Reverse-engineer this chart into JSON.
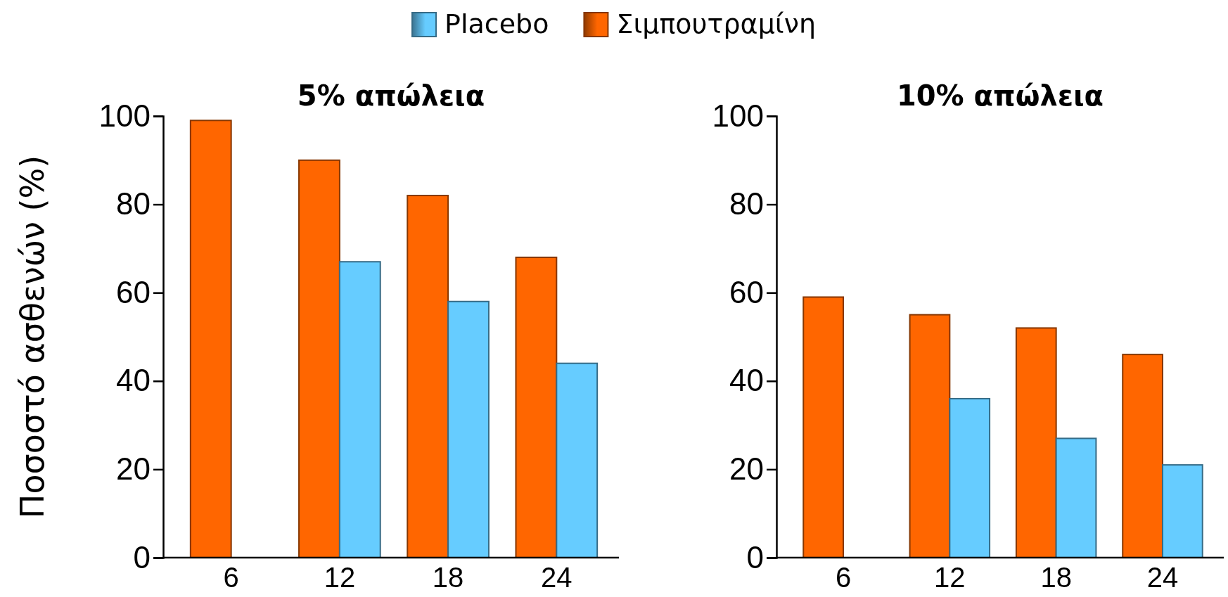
{
  "chart_data": [
    {
      "type": "bar",
      "title": "5% απώλεια",
      "ylabel": "Ποσοστό ασθενών (%)",
      "categories": [
        "6",
        "12",
        "18",
        "24"
      ],
      "legend": "top",
      "ylim": [
        0,
        100
      ],
      "yticks": [
        0,
        20,
        40,
        60,
        80,
        100
      ],
      "series": [
        {
          "name": "Σιμπουτραμίνη",
          "color": "#ff6600",
          "values": [
            99,
            90,
            82,
            68
          ]
        },
        {
          "name": "Placebo",
          "color": "#66ccff",
          "values": [
            null,
            67,
            58,
            44
          ]
        }
      ]
    },
    {
      "type": "bar",
      "title": "10% απώλεια",
      "categories": [
        "6",
        "12",
        "18",
        "24"
      ],
      "ylim": [
        0,
        100
      ],
      "yticks": [
        0,
        20,
        40,
        60,
        80,
        100
      ],
      "series": [
        {
          "color": "#ff6600",
          "values": [
            59,
            55,
            52,
            46
          ]
        },
        {
          "color": "#66ccff",
          "values": [
            null,
            36,
            27,
            21
          ]
        }
      ]
    }
  ]
}
